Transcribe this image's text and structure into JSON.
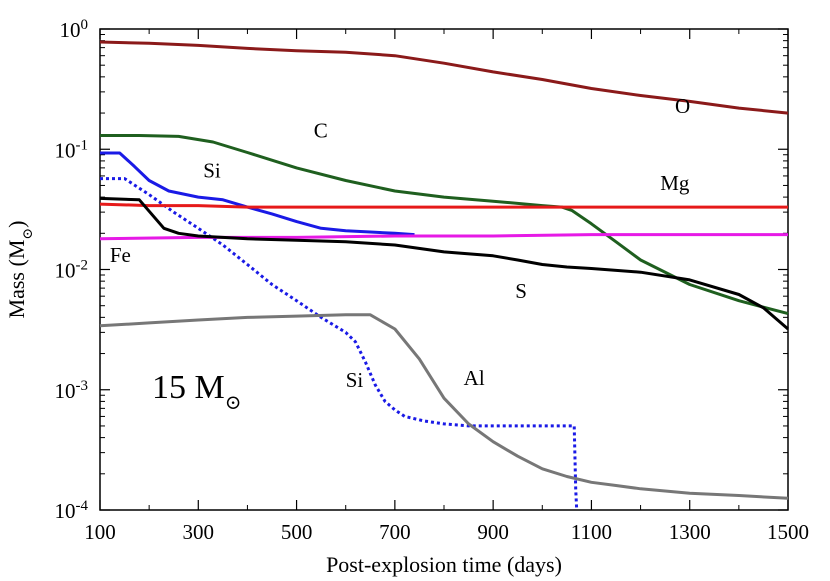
{
  "chart_data": {
    "type": "line",
    "title": "",
    "xlabel": "Post-explosion time (days)",
    "ylabel": "Mass (M",
    "ylabel_subscript": "⊙",
    "ylabel_close": ")",
    "xlim": [
      100,
      1500
    ],
    "ylim": [
      0.0001,
      1
    ],
    "yscale": "log",
    "x_ticks": [
      100,
      300,
      500,
      700,
      900,
      1100,
      1300,
      1500
    ],
    "x_tick_labels": [
      "100",
      "300",
      "500",
      "700",
      "900",
      "1100",
      "1300",
      "1500"
    ],
    "y_ticks": [
      {
        "value": 0.0001,
        "base": "10",
        "exp": "-4"
      },
      {
        "value": 0.001,
        "base": "10",
        "exp": "-3"
      },
      {
        "value": 0.01,
        "base": "10",
        "exp": "-2"
      },
      {
        "value": 0.1,
        "base": "10",
        "exp": "-1"
      },
      {
        "value": 1,
        "base": "10",
        "exp": "0"
      }
    ],
    "annotation": {
      "text": "15 M",
      "subscript": "⊙"
    },
    "series": [
      {
        "name": "O",
        "color": "#8b1a1a",
        "dash": "",
        "x": [
          100,
          200,
          300,
          400,
          500,
          600,
          700,
          800,
          900,
          1000,
          1100,
          1200,
          1300,
          1400,
          1500
        ],
        "y": [
          0.78,
          0.76,
          0.73,
          0.69,
          0.66,
          0.64,
          0.6,
          0.52,
          0.44,
          0.38,
          0.32,
          0.28,
          0.25,
          0.22,
          0.2
        ],
        "label": "O",
        "label_x": 1270,
        "label_y": 0.2
      },
      {
        "name": "C",
        "color": "#1f5f1f",
        "dash": "",
        "x": [
          100,
          180,
          260,
          330,
          400,
          500,
          600,
          700,
          800,
          900,
          1000,
          1040,
          1060,
          1100,
          1150,
          1200,
          1300,
          1400,
          1500
        ],
        "y": [
          0.13,
          0.13,
          0.128,
          0.115,
          0.094,
          0.07,
          0.055,
          0.045,
          0.04,
          0.037,
          0.034,
          0.033,
          0.031,
          0.024,
          0.017,
          0.012,
          0.0075,
          0.0055,
          0.0043
        ],
        "label": "C",
        "label_x": 535,
        "label_y": 0.125
      },
      {
        "name": "Si",
        "color": "#1a1ae6",
        "dash": "",
        "x": [
          100,
          140,
          170,
          200,
          240,
          300,
          350,
          400,
          450,
          500,
          550,
          600,
          650,
          700,
          740
        ],
        "y": [
          0.093,
          0.093,
          0.072,
          0.055,
          0.045,
          0.04,
          0.038,
          0.033,
          0.029,
          0.025,
          0.022,
          0.021,
          0.0205,
          0.02,
          0.0195
        ],
        "label": "Si",
        "label_x": 310,
        "label_y": 0.058
      },
      {
        "name": "Si (dotted)",
        "color": "#1a1ae6",
        "dash": "3,3",
        "x": [
          100,
          150,
          200,
          250,
          300,
          350,
          400,
          450,
          500,
          550,
          600,
          620,
          640,
          660,
          680,
          700,
          720,
          760,
          800,
          850,
          900,
          950,
          1000,
          1050,
          1065,
          1068,
          1070
        ],
        "y": [
          0.057,
          0.057,
          0.042,
          0.03,
          0.022,
          0.016,
          0.011,
          0.0075,
          0.0055,
          0.004,
          0.003,
          0.0025,
          0.0017,
          0.0011,
          0.0008,
          0.00068,
          0.0006,
          0.00055,
          0.00052,
          0.0005,
          0.0005,
          0.0005,
          0.0005,
          0.0005,
          0.0005,
          0.00015,
          0.0001
        ],
        "label": "Si",
        "label_x": 600,
        "label_y": 0.00105
      },
      {
        "name": "Mg",
        "color": "#e61a1a",
        "dash": "",
        "x": [
          100,
          200,
          300,
          400,
          500,
          600,
          800,
          1000,
          1200,
          1500
        ],
        "y": [
          0.035,
          0.034,
          0.034,
          0.033,
          0.033,
          0.033,
          0.033,
          0.033,
          0.033,
          0.033
        ],
        "label": "Mg",
        "label_x": 1240,
        "label_y": 0.046
      },
      {
        "name": "Fe",
        "color": "#e61ae6",
        "dash": "",
        "x": [
          100,
          300,
          500,
          700,
          900,
          1100,
          1300,
          1500
        ],
        "y": [
          0.018,
          0.0185,
          0.0185,
          0.019,
          0.019,
          0.0195,
          0.0195,
          0.0195
        ],
        "label": "Fe",
        "label_x": 120,
        "label_y": 0.0115
      },
      {
        "name": "S",
        "color": "#000000",
        "dash": "",
        "x": [
          100,
          180,
          230,
          260,
          300,
          400,
          500,
          600,
          700,
          800,
          900,
          950,
          1000,
          1050,
          1100,
          1200,
          1300,
          1400,
          1450,
          1500
        ],
        "y": [
          0.039,
          0.038,
          0.022,
          0.02,
          0.019,
          0.018,
          0.0175,
          0.017,
          0.016,
          0.014,
          0.013,
          0.012,
          0.011,
          0.0105,
          0.0102,
          0.0095,
          0.0082,
          0.0062,
          0.0048,
          0.0032
        ],
        "label": "S",
        "label_x": 945,
        "label_y": 0.0058
      },
      {
        "name": "Al",
        "color": "#777777",
        "dash": "",
        "x": [
          100,
          200,
          300,
          400,
          500,
          600,
          650,
          700,
          750,
          800,
          850,
          900,
          950,
          1000,
          1050,
          1100,
          1150,
          1200,
          1300,
          1400,
          1500
        ],
        "y": [
          0.0034,
          0.0036,
          0.0038,
          0.004,
          0.0041,
          0.0042,
          0.0042,
          0.0032,
          0.0018,
          0.00085,
          0.00052,
          0.00037,
          0.00028,
          0.00022,
          0.00019,
          0.00017,
          0.00016,
          0.00015,
          0.000138,
          0.000132,
          0.000125
        ],
        "label": "Al",
        "label_x": 840,
        "label_y": 0.0011
      }
    ]
  }
}
